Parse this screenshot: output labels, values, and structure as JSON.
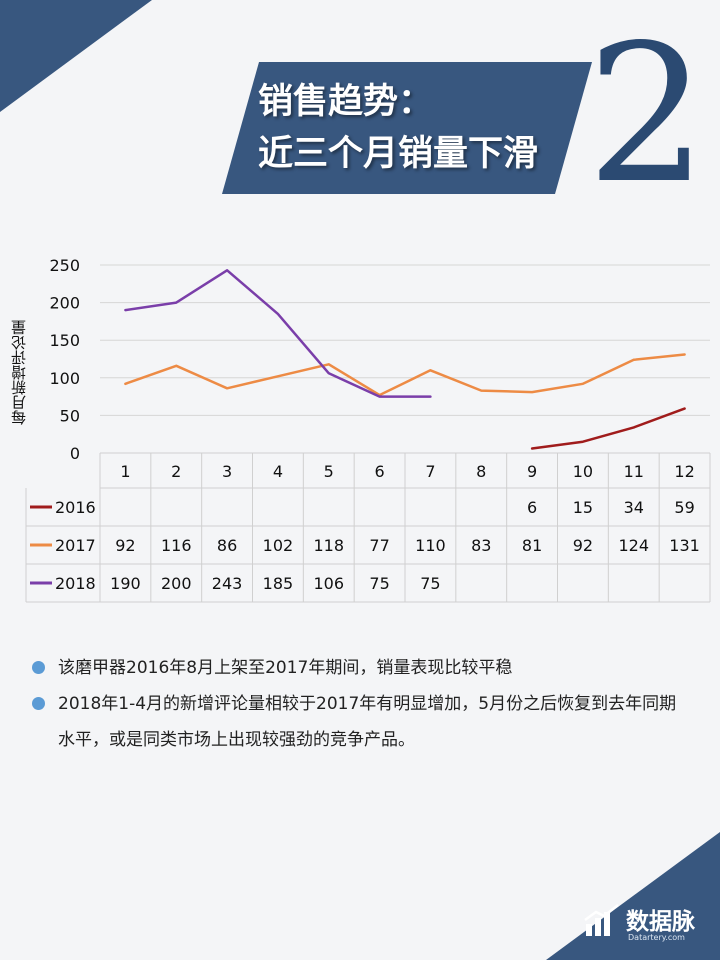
{
  "title": {
    "line1": "销售趋势：",
    "line2": "近三个月销量下滑",
    "number": "2"
  },
  "brand": {
    "name": "数据脉",
    "site": "Datartery.com"
  },
  "bullets": [
    "该磨甲器2016年8月上架至2017年期间，销量表现比较平稳",
    "2018年1-4月的新增评论量相较于2017年有明显增加，5月份之后恢复到去年同期水平，或是同类市场上出现较强劲的竞争产品。"
  ],
  "colors": {
    "banner": "#38577f",
    "accent_dark": "#2b4a72",
    "s2016": "#a01c1c",
    "s2017": "#ed8b45",
    "s2018": "#7a3ea9",
    "bullet_dot": "#5b9bd5"
  },
  "chart_data": {
    "type": "line",
    "ylabel": "每月新增评论量",
    "xlabel": "",
    "ylim": [
      0,
      250
    ],
    "yticks": [
      0,
      50,
      100,
      150,
      200,
      250
    ],
    "grid": true,
    "categories": [
      "1",
      "2",
      "3",
      "4",
      "5",
      "6",
      "7",
      "8",
      "9",
      "10",
      "11",
      "12"
    ],
    "data_table": true,
    "series": [
      {
        "name": "2016",
        "color": "#a01c1c",
        "values": [
          null,
          null,
          null,
          null,
          null,
          null,
          null,
          null,
          6,
          15,
          34,
          59
        ]
      },
      {
        "name": "2017",
        "color": "#ed8b45",
        "values": [
          92,
          116,
          86,
          102,
          118,
          77,
          110,
          83,
          81,
          92,
          124,
          131
        ]
      },
      {
        "name": "2018",
        "color": "#7a3ea9",
        "values": [
          190,
          200,
          243,
          185,
          106,
          75,
          75,
          null,
          null,
          null,
          null,
          null
        ]
      }
    ]
  }
}
